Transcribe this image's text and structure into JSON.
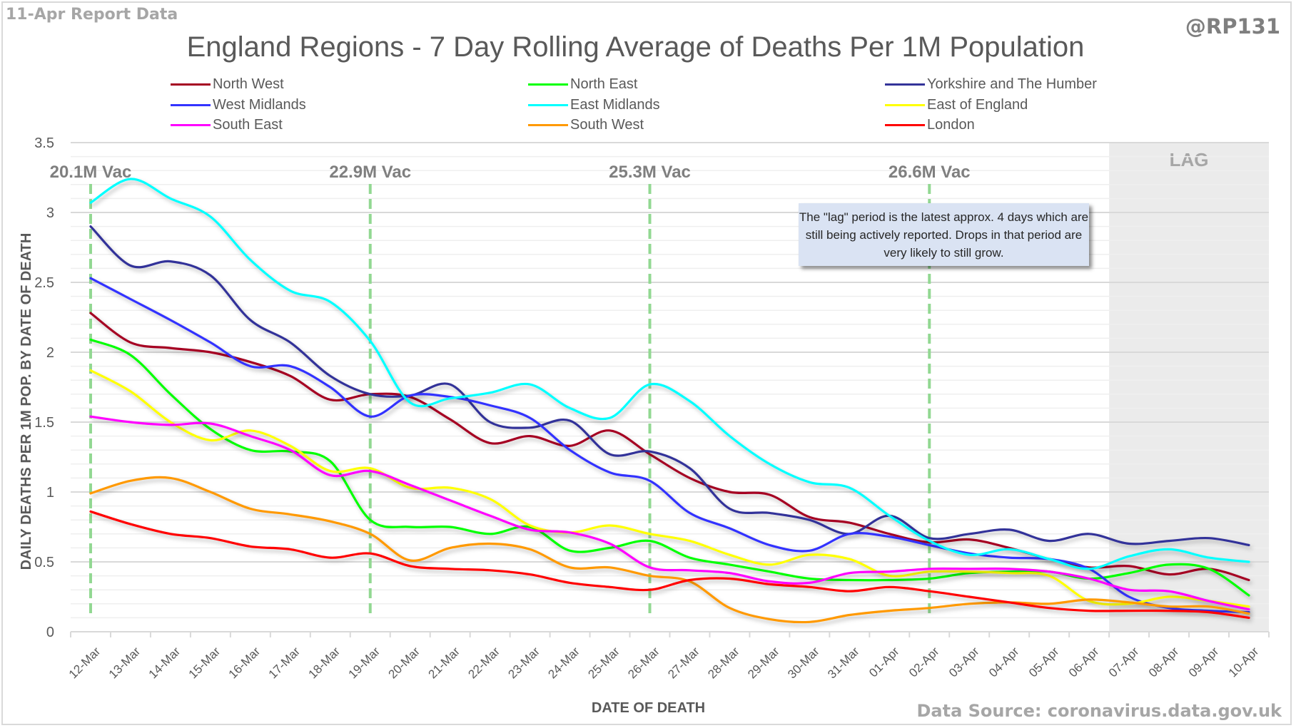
{
  "header": {
    "report_date": "11-Apr Report Data",
    "handle": "@RP131",
    "data_source": "Data Source: coronavirus.data.gov.uk"
  },
  "annotations": {
    "lag_label": "LAG",
    "lag_note": "The \"lag\" period is the latest approx. 4 days which are still being actively reported. Drops in that period are very likely to still grow.",
    "vaccination_markers": [
      {
        "date": "12-Mar",
        "label": "20.1M Vac"
      },
      {
        "date": "19-Mar",
        "label": "22.9M Vac"
      },
      {
        "date": "26-Mar",
        "label": "25.3M Vac"
      },
      {
        "date": "02-Apr",
        "label": "26.6M Vac"
      }
    ],
    "lag_start": "07-Apr",
    "lag_end": "10-Apr",
    "marker_color": "#92d892",
    "lag_color": "#ebebeb"
  },
  "chart_data": {
    "type": "line",
    "title": "England Regions - 7 Day Rolling Average of Deaths Per 1M Population",
    "xlabel": "DATE OF DEATH",
    "ylabel": "DAILY DEATHS PER 1M POP. BY DATE OF DEATH",
    "ylim": [
      0,
      3.5
    ],
    "yticks": [
      "0",
      "0.5",
      "1",
      "1.5",
      "2",
      "2.5",
      "3",
      "3.5"
    ],
    "grid": true,
    "legend_position": "top",
    "categories": [
      "12-Mar",
      "13-Mar",
      "14-Mar",
      "15-Mar",
      "16-Mar",
      "17-Mar",
      "18-Mar",
      "19-Mar",
      "20-Mar",
      "21-Mar",
      "22-Mar",
      "23-Mar",
      "24-Mar",
      "25-Mar",
      "26-Mar",
      "27-Mar",
      "28-Mar",
      "29-Mar",
      "30-Mar",
      "31-Mar",
      "01-Apr",
      "02-Apr",
      "03-Apr",
      "04-Apr",
      "05-Apr",
      "06-Apr",
      "07-Apr",
      "08-Apr",
      "09-Apr",
      "10-Apr"
    ],
    "series": [
      {
        "name": "North West",
        "color": "#a50021",
        "values": [
          2.28,
          2.07,
          2.03,
          2.0,
          1.93,
          1.83,
          1.66,
          1.7,
          1.68,
          1.52,
          1.35,
          1.4,
          1.33,
          1.44,
          1.27,
          1.1,
          1.0,
          0.98,
          0.82,
          0.78,
          0.7,
          0.64,
          0.66,
          0.6,
          0.52,
          0.46,
          0.47,
          0.41,
          0.45,
          0.37
        ]
      },
      {
        "name": "North East",
        "color": "#00ff00",
        "values": [
          2.09,
          1.98,
          1.7,
          1.45,
          1.3,
          1.29,
          1.22,
          0.8,
          0.75,
          0.75,
          0.7,
          0.75,
          0.58,
          0.6,
          0.65,
          0.53,
          0.48,
          0.43,
          0.38,
          0.37,
          0.37,
          0.38,
          0.42,
          0.43,
          0.43,
          0.38,
          0.42,
          0.48,
          0.45,
          0.26
        ]
      },
      {
        "name": "Yorkshire and The Humber",
        "color": "#333399",
        "values": [
          2.9,
          2.62,
          2.65,
          2.55,
          2.23,
          2.07,
          1.83,
          1.7,
          1.69,
          1.77,
          1.5,
          1.46,
          1.51,
          1.27,
          1.29,
          1.17,
          0.88,
          0.85,
          0.8,
          0.7,
          0.83,
          0.67,
          0.7,
          0.73,
          0.65,
          0.7,
          0.63,
          0.65,
          0.67,
          0.62
        ]
      },
      {
        "name": "West Midlands",
        "color": "#3333ff",
        "values": [
          2.53,
          2.38,
          2.23,
          2.07,
          1.9,
          1.9,
          1.75,
          1.54,
          1.69,
          1.68,
          1.62,
          1.53,
          1.3,
          1.14,
          1.08,
          0.85,
          0.74,
          0.62,
          0.58,
          0.7,
          0.68,
          0.62,
          0.56,
          0.53,
          0.52,
          0.45,
          0.25,
          0.17,
          0.15,
          0.14
        ]
      },
      {
        "name": "East Midlands",
        "color": "#00ffff",
        "values": [
          3.07,
          3.24,
          3.1,
          2.97,
          2.66,
          2.44,
          2.36,
          2.08,
          1.64,
          1.67,
          1.71,
          1.77,
          1.6,
          1.53,
          1.77,
          1.65,
          1.4,
          1.2,
          1.07,
          1.03,
          0.83,
          0.65,
          0.55,
          0.59,
          0.52,
          0.45,
          0.54,
          0.59,
          0.53,
          0.5
        ]
      },
      {
        "name": "East of England",
        "color": "#ffff00",
        "values": [
          1.87,
          1.72,
          1.5,
          1.37,
          1.44,
          1.33,
          1.15,
          1.17,
          1.03,
          1.03,
          0.95,
          0.76,
          0.71,
          0.76,
          0.7,
          0.65,
          0.55,
          0.48,
          0.55,
          0.52,
          0.4,
          0.43,
          0.43,
          0.42,
          0.4,
          0.22,
          0.2,
          0.25,
          0.22,
          0.18
        ]
      },
      {
        "name": "South East",
        "color": "#ff00ff",
        "values": [
          1.54,
          1.5,
          1.48,
          1.49,
          1.4,
          1.3,
          1.12,
          1.15,
          1.05,
          0.94,
          0.83,
          0.73,
          0.71,
          0.63,
          0.46,
          0.44,
          0.42,
          0.36,
          0.35,
          0.42,
          0.43,
          0.45,
          0.45,
          0.45,
          0.43,
          0.38,
          0.3,
          0.29,
          0.22,
          0.16
        ]
      },
      {
        "name": "South West",
        "color": "#ff9900",
        "values": [
          0.99,
          1.08,
          1.1,
          1.0,
          0.88,
          0.84,
          0.79,
          0.7,
          0.51,
          0.6,
          0.63,
          0.59,
          0.46,
          0.46,
          0.4,
          0.36,
          0.17,
          0.09,
          0.07,
          0.12,
          0.15,
          0.17,
          0.2,
          0.21,
          0.2,
          0.23,
          0.21,
          0.18,
          0.18,
          0.13
        ]
      },
      {
        "name": "London",
        "color": "#ff0000",
        "values": [
          0.86,
          0.77,
          0.7,
          0.67,
          0.61,
          0.59,
          0.53,
          0.56,
          0.47,
          0.45,
          0.44,
          0.41,
          0.35,
          0.32,
          0.3,
          0.37,
          0.38,
          0.34,
          0.32,
          0.29,
          0.32,
          0.29,
          0.25,
          0.21,
          0.17,
          0.15,
          0.15,
          0.15,
          0.14,
          0.1
        ]
      }
    ]
  }
}
